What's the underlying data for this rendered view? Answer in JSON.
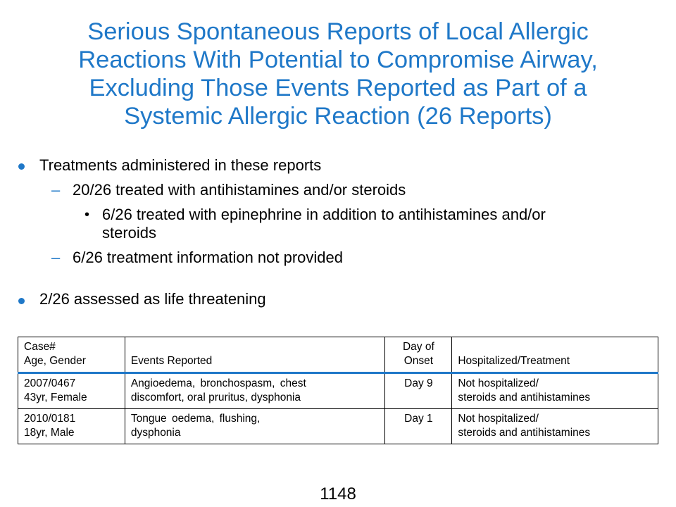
{
  "title": {
    "lines": [
      "Serious Spontaneous Reports of Local Allergic",
      "Reactions With Potential to Compromise Airway,",
      "Excluding Those Events Reported as Part of a",
      "Systemic Allergic Reaction (26 Reports)"
    ]
  },
  "bullets": {
    "treatments": "Treatments administered in these reports",
    "treated_antihistamines": "20/26 treated with antihistamines and/or steroids",
    "epinephrine_line1": "6/26 treated with epinephrine in addition to antihistamines and/or",
    "epinephrine_line2": "steroids",
    "not_provided": "6/26 treatment information not provided",
    "life_threatening": "2/26 assessed as life threatening",
    "dash_glyph": "–",
    "subbullet_glyph": "•"
  },
  "table": {
    "headers": {
      "case_line1": "Case#",
      "case_line2": "Age, Gender",
      "events": "Events Reported",
      "onset_line1": "Day of",
      "onset_line2": "Onset",
      "hospitalized": "Hospitalized/Treatment"
    },
    "rows": [
      {
        "case_id": "2007/0467",
        "age_gender": "43yr, Female",
        "events_line1": "Angioedema, bronchospasm, chest",
        "events_line2": "discomfort, oral pruritus, dysphonia",
        "onset": "Day 9",
        "hosp_line1": "Not hospitalized/",
        "hosp_line2": "steroids and antihistamines"
      },
      {
        "case_id": "2010/0181",
        "age_gender": "18yr, Male",
        "events_line1": "Tongue oedema, flushing,",
        "events_line2": "dysphonia",
        "onset": "Day 1",
        "hosp_line1": "Not hospitalized/",
        "hosp_line2": "steroids and antihistamines"
      }
    ]
  },
  "page_number": "1148",
  "colors": {
    "accent": "#1f78c8",
    "text": "#000000",
    "background": "#ffffff"
  }
}
